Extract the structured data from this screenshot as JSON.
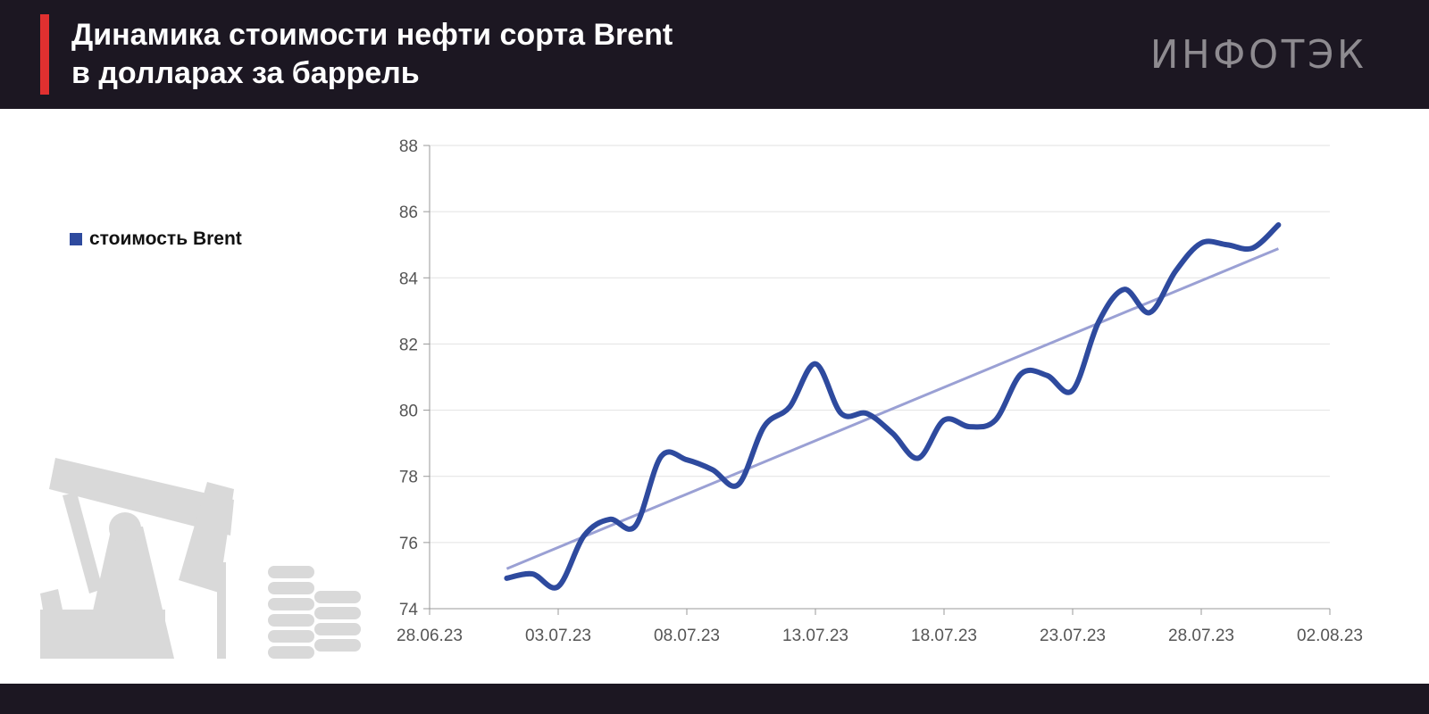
{
  "header": {
    "title_line1": "Динамика стоимости нефти сорта Brent",
    "title_line2": "в долларах за баррель",
    "logo": "ИНФОТЭК"
  },
  "chart_data": {
    "type": "line",
    "title": "Динамика стоимости нефти сорта Brent в долларах за баррель",
    "xlabel": "",
    "ylabel": "",
    "ylim": [
      74,
      88
    ],
    "yticks": [
      "74",
      "76",
      "78",
      "80",
      "82",
      "84",
      "86",
      "88"
    ],
    "xticks": [
      "28.06.23",
      "03.07.23",
      "08.07.23",
      "13.07.23",
      "18.07.23",
      "23.07.23",
      "28.07.23",
      "02.08.23"
    ],
    "x_start": "28.06.23",
    "x_days": 35,
    "series": [
      {
        "name": "стоимость Brent",
        "color": "#2e4a9e",
        "x_day": [
          3,
          4,
          5,
          6,
          7,
          8,
          9,
          10,
          11,
          12,
          13,
          14,
          15,
          16,
          17,
          18,
          19,
          20,
          21,
          22,
          23,
          24,
          25,
          26,
          27,
          28,
          29,
          30,
          31,
          32,
          33
        ],
        "values": [
          74.92,
          75.05,
          74.67,
          76.2,
          76.7,
          76.5,
          78.6,
          78.5,
          78.2,
          77.75,
          79.5,
          80.1,
          81.4,
          79.9,
          79.9,
          79.3,
          78.55,
          79.7,
          79.5,
          79.7,
          81.1,
          81.05,
          80.6,
          82.65,
          83.65,
          82.95,
          84.2,
          85.05,
          85.0,
          84.9,
          85.6
        ]
      }
    ],
    "trendline": {
      "type": "linear",
      "color": "#9aa0d4"
    },
    "legend": {
      "label": "стоимость Brent",
      "position": "left"
    },
    "grid": true
  }
}
